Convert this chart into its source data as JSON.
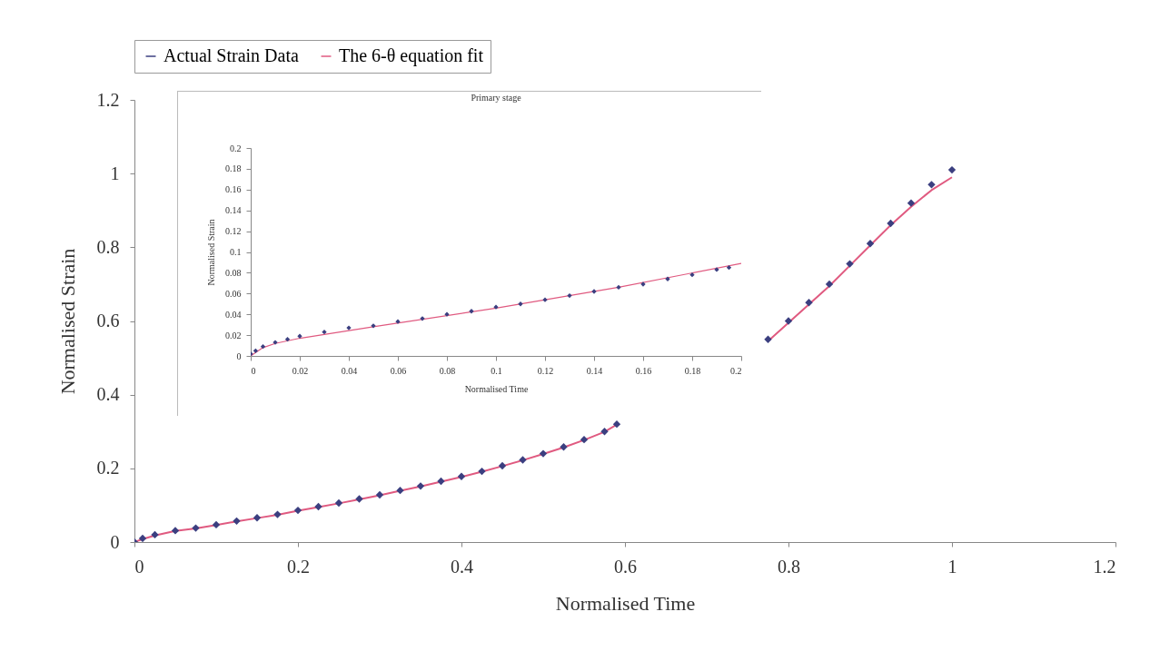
{
  "chart_data": [
    {
      "type": "scatter",
      "xlabel": "Normalised Time",
      "ylabel": "Normalised Strain",
      "legend": "top",
      "x": [
        0,
        0.01,
        0.025,
        0.05,
        0.075,
        0.1,
        0.125,
        0.15,
        0.175,
        0.2,
        0.225,
        0.25,
        0.275,
        0.3,
        0.325,
        0.35,
        0.375,
        0.4,
        0.425,
        0.45,
        0.475,
        0.5,
        0.525,
        0.55,
        0.575,
        0.59,
        0.625,
        0.65,
        0.675,
        0.7,
        0.725,
        0.75,
        0.775,
        0.8,
        0.825,
        0.85,
        0.875,
        0.9,
        0.925,
        0.95,
        0.975,
        1.0
      ],
      "series": [
        {
          "name": "Actual Strain Data",
          "color": "#3b3f80",
          "marker": "diamond",
          "values": [
            0,
            0.01,
            0.02,
            0.031,
            0.038,
            0.047,
            0.057,
            0.066,
            0.075,
            0.086,
            0.096,
            0.106,
            0.117,
            0.128,
            0.14,
            0.152,
            0.165,
            0.178,
            0.192,
            0.207,
            0.223,
            0.24,
            0.258,
            0.278,
            0.3,
            0.32,
            null,
            null,
            null,
            null,
            null,
            null,
            0.55,
            0.6,
            0.65,
            0.7,
            0.755,
            0.81,
            0.865,
            0.92,
            0.97,
            1.01
          ]
        },
        {
          "name": "The 6-θ equation fit",
          "type": "line",
          "color": "#e05a80",
          "values": [
            0,
            0.008,
            0.018,
            0.03,
            0.037,
            0.046,
            0.056,
            0.065,
            0.074,
            0.085,
            0.095,
            0.105,
            0.116,
            0.127,
            0.139,
            0.151,
            0.164,
            0.177,
            0.191,
            0.206,
            0.222,
            0.239,
            0.257,
            0.277,
            0.299,
            0.319,
            null,
            null,
            null,
            null,
            null,
            null,
            0.545,
            0.595,
            0.645,
            0.695,
            0.75,
            0.805,
            0.86,
            0.91,
            0.955,
            0.99
          ]
        }
      ],
      "xlim": [
        0,
        1.2
      ],
      "xticks": [
        0,
        0.2,
        0.4,
        0.6,
        0.8,
        1,
        1.2
      ],
      "ylim": [
        0,
        1.2
      ],
      "yticks": [
        0,
        0.2,
        0.4,
        0.6,
        0.8,
        1,
        1.2
      ]
    },
    {
      "type": "scatter",
      "title": "Primary stage",
      "xlabel": "Normalised Time",
      "ylabel": "Normalised Strain",
      "series": [
        {
          "color": "#3b3f80",
          "marker": "diamond",
          "x": [
            0,
            0.002,
            0.005,
            0.01,
            0.015,
            0.02,
            0.03,
            0.04,
            0.05,
            0.06,
            0.07,
            0.08,
            0.09,
            0.1,
            0.11,
            0.12,
            0.13,
            0.14,
            0.15,
            0.16,
            0.17,
            0.18,
            0.19,
            0.195
          ],
          "values": [
            0.002,
            0.005,
            0.009,
            0.013,
            0.016,
            0.019,
            0.023,
            0.027,
            0.029,
            0.033,
            0.036,
            0.04,
            0.043,
            0.047,
            0.05,
            0.054,
            0.058,
            0.062,
            0.066,
            0.069,
            0.074,
            0.078,
            0.083,
            0.085
          ]
        },
        {
          "type": "line",
          "color": "#e05a80",
          "x": [
            0,
            0.005,
            0.01,
            0.02,
            0.05,
            0.1,
            0.15,
            0.2
          ],
          "values": [
            0,
            0.008,
            0.012,
            0.017,
            0.028,
            0.046,
            0.066,
            0.089
          ]
        }
      ],
      "xlim": [
        0,
        0.2
      ],
      "xticks": [
        0,
        0.02,
        0.04,
        0.06,
        0.08,
        0.1,
        0.12,
        0.14,
        0.16,
        0.18,
        0.2
      ],
      "ylim": [
        0,
        0.2
      ],
      "yticks": [
        0,
        0.02,
        0.04,
        0.06,
        0.08,
        0.1,
        0.12,
        0.14,
        0.16,
        0.18,
        0.2
      ]
    }
  ]
}
